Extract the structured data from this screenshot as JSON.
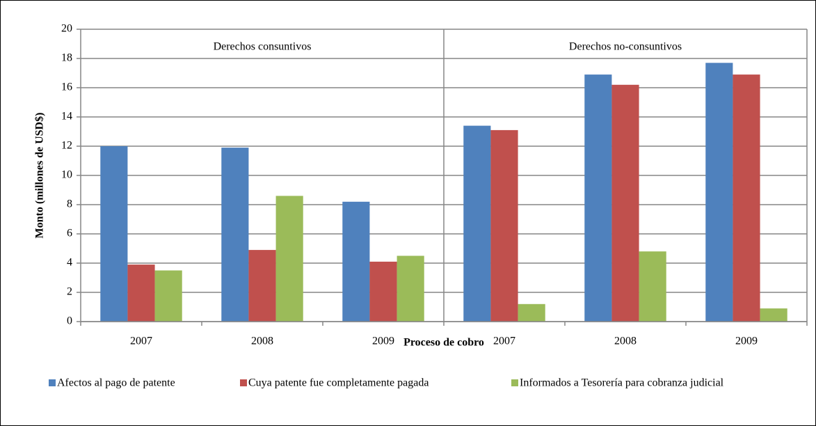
{
  "chart_data": {
    "type": "bar",
    "x_label": "Proceso de cobro",
    "y_label": "Monto (millones de USD$)",
    "groups": [
      "Derechos consuntivos",
      "Derechos no-consuntivos"
    ],
    "categories": [
      "2007",
      "2008",
      "2009",
      "2007",
      "2008",
      "2009"
    ],
    "series": [
      {
        "name": "Afectos al pago de patente",
        "color": "#4f81bd",
        "values": [
          12.0,
          11.9,
          8.2,
          13.4,
          16.9,
          17.7
        ]
      },
      {
        "name": "Cuya patente fue completamente pagada",
        "color": "#c0504d",
        "values": [
          3.9,
          4.9,
          4.1,
          13.1,
          16.2,
          16.9
        ]
      },
      {
        "name": "Informados a Tesorería para cobranza judicial",
        "color": "#9bbb59",
        "values": [
          3.5,
          8.6,
          4.5,
          1.2,
          4.8,
          0.9
        ]
      }
    ],
    "ylim": [
      0,
      20
    ],
    "yticks": [
      0,
      2,
      4,
      6,
      8,
      10,
      12,
      14,
      16,
      18,
      20
    ],
    "grid": true,
    "legend": "bottom"
  }
}
